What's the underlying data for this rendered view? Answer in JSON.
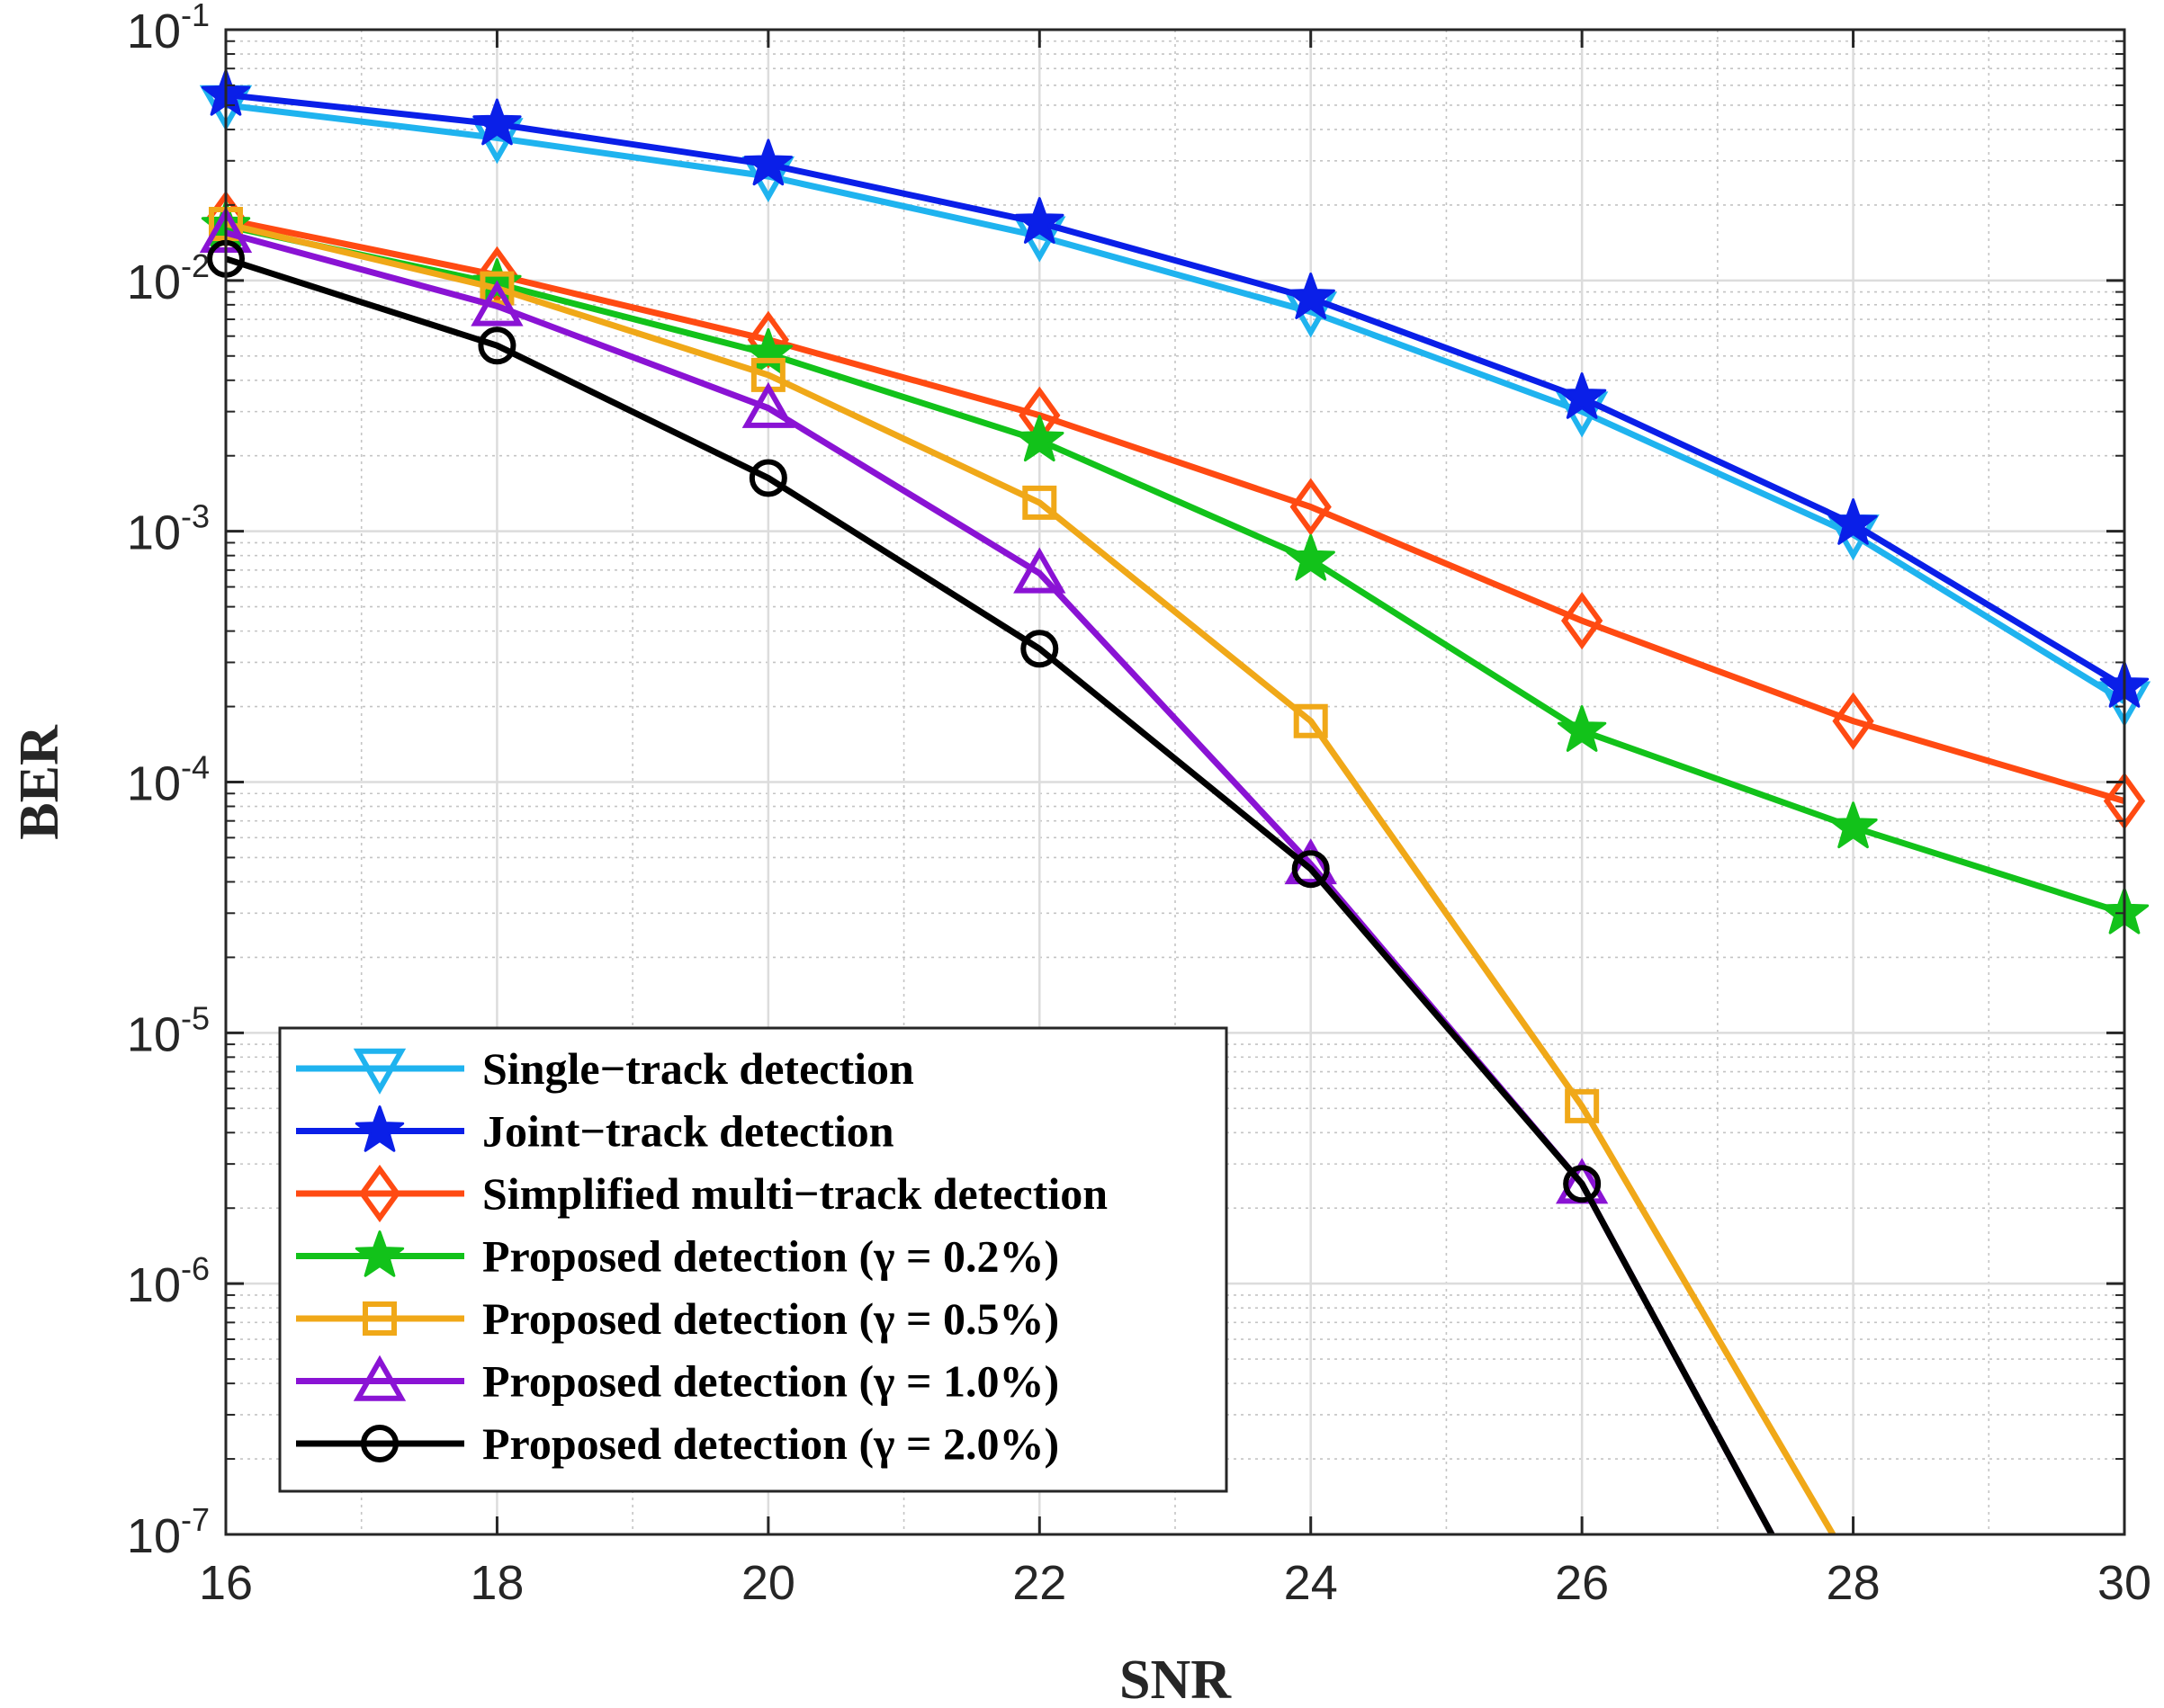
{
  "chart_data": {
    "type": "line",
    "title": "",
    "xlabel": "SNR",
    "ylabel": "BER",
    "xlim": [
      16,
      30
    ],
    "ylim": [
      1e-07,
      0.1
    ],
    "yscale": "log",
    "grid": true,
    "minor_grid": true,
    "x_ticks": [
      "16",
      "18",
      "20",
      "22",
      "24",
      "26",
      "28",
      "30"
    ],
    "y_ticks": [
      {
        "base": "10",
        "exp": "-1",
        "value": 0.1
      },
      {
        "base": "10",
        "exp": "-2",
        "value": 0.01
      },
      {
        "base": "10",
        "exp": "-3",
        "value": 0.001
      },
      {
        "base": "10",
        "exp": "-4",
        "value": 0.0001
      },
      {
        "base": "10",
        "exp": "-5",
        "value": 1e-05
      },
      {
        "base": "10",
        "exp": "-6",
        "value": 1e-06
      },
      {
        "base": "10",
        "exp": "-7",
        "value": 1e-07
      }
    ],
    "legend_position": "bottom-left",
    "series": [
      {
        "name": "Single−track detection",
        "color": "#1fb3ef",
        "marker": "triangle-down",
        "x": [
          16,
          18,
          20,
          22,
          24,
          26,
          28,
          30
        ],
        "values": [
          0.05,
          0.037,
          0.026,
          0.015,
          0.0075,
          0.003,
          0.00097,
          0.00021
        ]
      },
      {
        "name": "Joint−track detection",
        "color": "#0a1fe8",
        "marker": "star",
        "x": [
          16,
          18,
          20,
          22,
          24,
          26,
          28,
          30
        ],
        "values": [
          0.055,
          0.042,
          0.029,
          0.017,
          0.0085,
          0.0034,
          0.00107,
          0.00024
        ]
      },
      {
        "name": "Simplified multi−track detection",
        "color": "#ff4a12",
        "marker": "diamond",
        "x": [
          16,
          18,
          20,
          22,
          24,
          26,
          28,
          30
        ],
        "values": [
          0.0175,
          0.0105,
          0.0058,
          0.0029,
          0.00125,
          0.00044,
          0.000175,
          8.4e-05
        ]
      },
      {
        "name": "Proposed detection (γ = 0.2%)",
        "color": "#12c21a",
        "marker": "star",
        "x": [
          16,
          18,
          20,
          22,
          24,
          26,
          28,
          30
        ],
        "values": [
          0.0165,
          0.0097,
          0.0051,
          0.0023,
          0.00077,
          0.00016,
          6.6e-05,
          3e-05
        ]
      },
      {
        "name": "Proposed detection (γ = 0.5%)",
        "color": "#f0a818",
        "marker": "square",
        "x": [
          16,
          18,
          20,
          22,
          24,
          26,
          27.85
        ],
        "values": [
          0.0168,
          0.0093,
          0.0042,
          0.0013,
          0.000175,
          5.1e-06,
          1e-07
        ]
      },
      {
        "name": "Proposed detection (γ = 1.0%)",
        "color": "#8a13d4",
        "marker": "triangle-up",
        "x": [
          16,
          18,
          20,
          22,
          24,
          26,
          27.4
        ],
        "values": [
          0.0155,
          0.0079,
          0.0031,
          0.00068,
          4.7e-05,
          2.5e-06,
          1e-07
        ]
      },
      {
        "name": "Proposed detection (γ = 2.0%)",
        "color": "#000000",
        "marker": "circle",
        "x": [
          16,
          18,
          20,
          22,
          24,
          26,
          27.4
        ],
        "values": [
          0.0122,
          0.0055,
          0.00163,
          0.00034,
          4.5e-05,
          2.5e-06,
          1e-07
        ]
      }
    ]
  }
}
